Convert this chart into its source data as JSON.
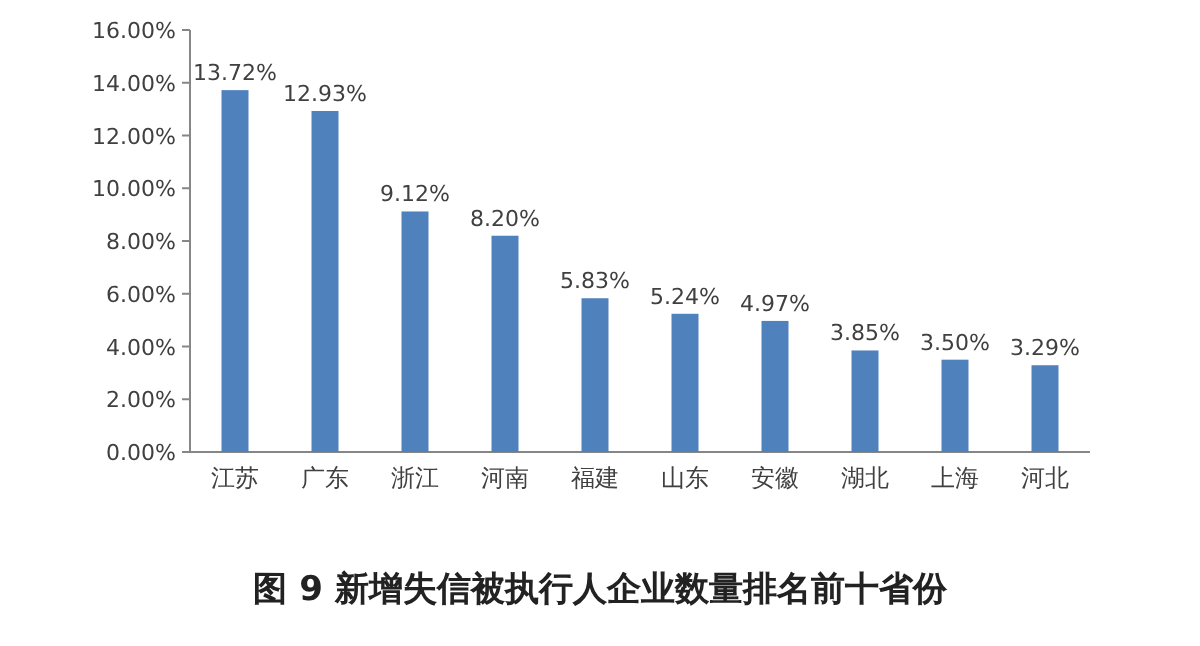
{
  "chart_data": {
    "type": "bar",
    "title": "图 9  新增失信被执行人企业数量排名前十省份",
    "categories": [
      "江苏",
      "广东",
      "浙江",
      "河南",
      "福建",
      "山东",
      "安徽",
      "湖北",
      "上海",
      "河北"
    ],
    "values": [
      13.72,
      12.93,
      9.12,
      8.2,
      5.83,
      5.24,
      4.97,
      3.85,
      3.5,
      3.29
    ],
    "value_labels": [
      "13.72%",
      "12.93%",
      "9.12%",
      "8.20%",
      "5.83%",
      "5.24%",
      "4.97%",
      "3.85%",
      "3.50%",
      "3.29%"
    ],
    "color": "#4f81bd",
    "ylim": [
      0,
      16
    ],
    "yticks": [
      {
        "value": 0,
        "label": "0.00%"
      },
      {
        "value": 2,
        "label": "2.00%"
      },
      {
        "value": 4,
        "label": "4.00%"
      },
      {
        "value": 6,
        "label": "6.00%"
      },
      {
        "value": 8,
        "label": "8.00%"
      },
      {
        "value": 10,
        "label": "10.00%"
      },
      {
        "value": 12,
        "label": "12.00%"
      },
      {
        "value": 14,
        "label": "14.00%"
      },
      {
        "value": 16,
        "label": "16.00%"
      }
    ],
    "grid": false
  }
}
